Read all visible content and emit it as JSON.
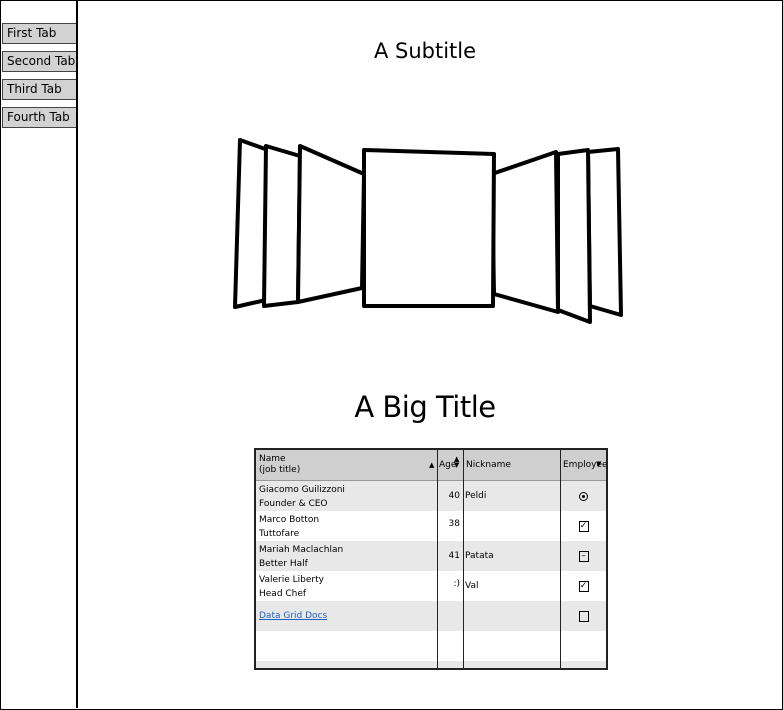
{
  "tabs": [
    "First Tab",
    "Second Tab",
    "Third Tab",
    "Fourth Tab"
  ],
  "subtitle": "A Subtitle",
  "big_title": "A Big Title",
  "grid": {
    "headers": {
      "name_line1": "Name",
      "name_line2": "(job title)",
      "age": "Age",
      "nickname": "Nickname",
      "employee": "Employee"
    },
    "rows": [
      {
        "name": "Giacomo Guilizzoni",
        "title": "Founder & CEO",
        "age": "40",
        "nickname": "Peldi",
        "employee": "radio-selected"
      },
      {
        "name": "Marco Botton",
        "title": "Tuttofare",
        "age": "38",
        "nickname": "",
        "employee": "checked"
      },
      {
        "name": "Mariah Maclachlan",
        "title": "Better Half",
        "age": "41",
        "nickname": "Patata",
        "employee": "indeterminate"
      },
      {
        "name": "Valerie Liberty",
        "title": "Head Chef",
        "age": ":)",
        "nickname": "Val",
        "employee": "checked"
      }
    ],
    "link_label": "Data Grid Docs",
    "link_row_employee": "unchecked"
  },
  "colors": {
    "header_bg": "#cfcfcf",
    "alt_row_bg": "#e8e8e8",
    "link": "#1f5fbf"
  }
}
